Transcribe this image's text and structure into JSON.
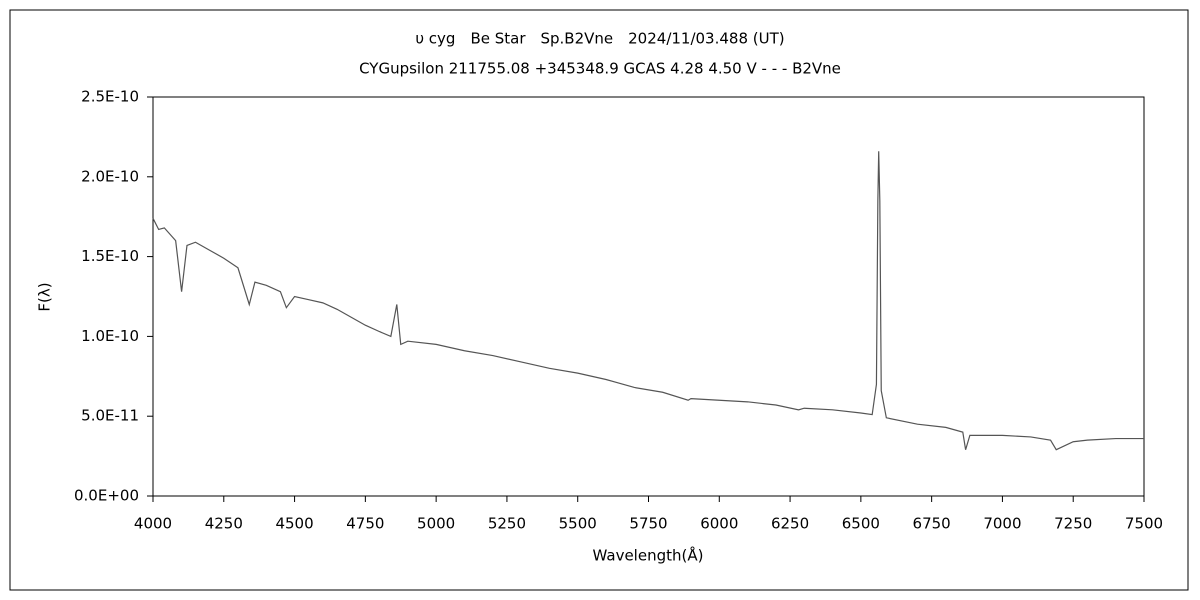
{
  "chart_data": {
    "type": "line",
    "title": "υ cyg　Be Star　Sp.B2Vne　2024/11/03.488 (UT)",
    "subtitle": "CYGupsilon 211755.08 +345348.9 GCAS 4.28 4.50 V - - - B2Vne",
    "x_label": "Wavelength(Å)",
    "y_label": "F(λ)",
    "xlim": [
      4000,
      7500
    ],
    "ylim": [
      0,
      2.5e-10
    ],
    "xticks": [
      4000,
      4250,
      4500,
      4750,
      5000,
      5250,
      5500,
      5750,
      6000,
      6250,
      6500,
      6750,
      7000,
      7250,
      7500
    ],
    "yticks": [
      {
        "value": 0,
        "label": "0.0E+00"
      },
      {
        "value": 5e-11,
        "label": "5.0E-11"
      },
      {
        "value": 1e-10,
        "label": "1.0E-10"
      },
      {
        "value": 1.5e-10,
        "label": "1.5E-10"
      },
      {
        "value": 2e-10,
        "label": "2.0E-10"
      },
      {
        "value": 2.5e-10,
        "label": "2.5E-10"
      }
    ],
    "x": [
      4000,
      4020,
      4040,
      4060,
      4080,
      4101,
      4120,
      4150,
      4200,
      4250,
      4300,
      4340,
      4360,
      4400,
      4450,
      4471,
      4500,
      4550,
      4600,
      4650,
      4700,
      4750,
      4800,
      4840,
      4861,
      4875,
      4900,
      5000,
      5100,
      5200,
      5300,
      5400,
      5500,
      5600,
      5700,
      5800,
      5890,
      5900,
      6000,
      6100,
      6200,
      6280,
      6300,
      6400,
      6500,
      6540,
      6555,
      6560,
      6563,
      6567,
      6572,
      6590,
      6700,
      6800,
      6860,
      6870,
      6885,
      7000,
      7100,
      7170,
      7190,
      7250,
      7300,
      7400,
      7500
    ],
    "series": [
      {
        "color": "#555555",
        "values": [
          1.74e-10,
          1.67e-10,
          1.68e-10,
          1.64e-10,
          1.6e-10,
          1.28e-10,
          1.57e-10,
          1.59e-10,
          1.54e-10,
          1.49e-10,
          1.43e-10,
          1.2e-10,
          1.34e-10,
          1.32e-10,
          1.28e-10,
          1.18e-10,
          1.25e-10,
          1.23e-10,
          1.21e-10,
          1.17e-10,
          1.12e-10,
          1.07e-10,
          1.03e-10,
          1e-10,
          1.2e-10,
          9.5e-11,
          9.7e-11,
          9.5e-11,
          9.1e-11,
          8.8e-11,
          8.4e-11,
          8e-11,
          7.7e-11,
          7.3e-11,
          6.8e-11,
          6.5e-11,
          6e-11,
          6.1e-11,
          6e-11,
          5.9e-11,
          5.7e-11,
          5.4e-11,
          5.5e-11,
          5.4e-11,
          5.2e-11,
          5.1e-11,
          7e-11,
          1.85e-10,
          2.16e-10,
          1.85e-10,
          6.6e-11,
          4.9e-11,
          4.5e-11,
          4.3e-11,
          4e-11,
          2.9e-11,
          3.8e-11,
          3.8e-11,
          3.7e-11,
          3.5e-11,
          2.9e-11,
          3.4e-11,
          3.5e-11,
          3.6e-11,
          3.6e-11
        ]
      }
    ]
  }
}
